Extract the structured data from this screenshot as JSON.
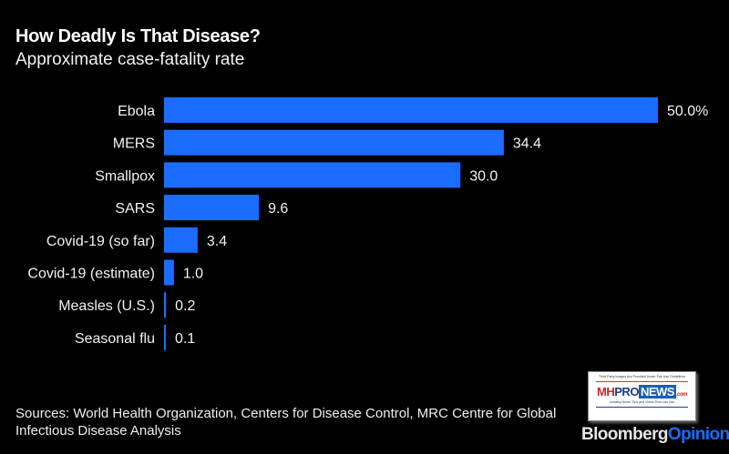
{
  "header": {
    "title": "How Deadly Is That Disease?",
    "subtitle": "Approximate case-fatality rate"
  },
  "chart_data": {
    "type": "bar",
    "orientation": "horizontal",
    "title": "How Deadly Is That Disease?",
    "subtitle": "Approximate case-fatality rate",
    "xlabel": "",
    "ylabel": "",
    "unit": "%",
    "categories": [
      "Ebola",
      "MERS",
      "Smallpox",
      "SARS",
      "Covid-19 (so far)",
      "Covid-19 (estimate)",
      "Measles (U.S.)",
      "Seasonal flu"
    ],
    "values": [
      50.0,
      34.4,
      30.0,
      9.6,
      3.4,
      1.0,
      0.2,
      0.1
    ],
    "data_labels": [
      "50.0%",
      "34.4",
      "30.0",
      "9.6",
      "3.4",
      "1.0",
      "0.2",
      "0.1"
    ],
    "xlim": [
      0,
      50
    ],
    "grid": false,
    "legend": "none",
    "bar_color": "#1a6dff"
  },
  "footer": {
    "source": "Sources: World Health Organization, Centers for Disease Control, MRC Centre for Global Infectious Disease Analysis"
  },
  "watermark": {
    "top_text": "Third Party Images Are Provided Under Fair Use Guidelines",
    "logo_mh": "MH",
    "logo_pro": "PRO",
    "logo_news": "NEWS",
    "logo_com": ".com",
    "tagline": "Industry News, Tips and Views Pros can Use"
  },
  "brand": {
    "part1": "Bloomberg",
    "part2": "Opinion"
  },
  "colors": {
    "background": "#000000",
    "bar": "#1a6dff",
    "text": "#ffffff"
  }
}
